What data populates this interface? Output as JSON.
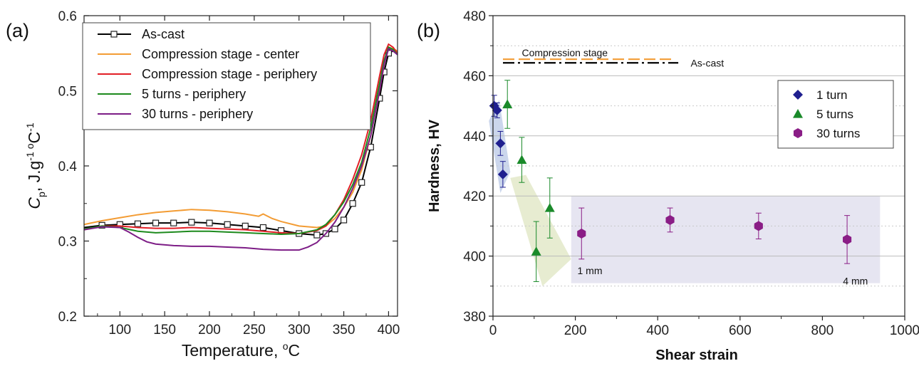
{
  "chart_data": [
    {
      "panel_label": "(a)",
      "type": "line",
      "xlabel": "Temperature, °C",
      "xlabel_parts": {
        "base": "Temperature, ",
        "sup": "o",
        "unit": "C"
      },
      "ylabel_parts": {
        "c": "C",
        "p": "p",
        "rest": ", J.g",
        "neg1": "-1",
        "o": "o",
        "c2": "C",
        "neg1b": "-1"
      },
      "xlim": [
        60,
        410
      ],
      "ylim": [
        0.2,
        0.6
      ],
      "xticks": [
        100,
        150,
        200,
        250,
        300,
        350,
        400
      ],
      "yticks": [
        0.2,
        0.3,
        0.4,
        0.5,
        0.6
      ],
      "xtick_labels": [
        "100",
        "150",
        "200",
        "250",
        "300",
        "350",
        "400"
      ],
      "ytick_labels": [
        "0.2",
        "0.3",
        "0.4",
        "0.5",
        "0.6"
      ],
      "legend_position": "top-left",
      "series": [
        {
          "name": "As-cast",
          "color": "#000000",
          "marker": "square",
          "x": [
            60,
            80,
            100,
            120,
            140,
            160,
            180,
            200,
            220,
            240,
            260,
            280,
            300,
            320,
            330,
            340,
            350,
            360,
            370,
            380,
            390,
            395,
            400,
            405,
            410
          ],
          "y": [
            0.318,
            0.321,
            0.322,
            0.323,
            0.324,
            0.324,
            0.325,
            0.324,
            0.322,
            0.32,
            0.318,
            0.314,
            0.31,
            0.308,
            0.31,
            0.316,
            0.328,
            0.35,
            0.378,
            0.425,
            0.49,
            0.525,
            0.55,
            0.553,
            0.552
          ]
        },
        {
          "name": "Compression stage - center",
          "color": "#f39c34",
          "x": [
            60,
            80,
            100,
            120,
            140,
            160,
            180,
            200,
            220,
            240,
            255,
            260,
            270,
            280,
            300,
            320,
            330,
            340,
            350,
            360,
            370,
            380,
            390,
            395,
            400,
            405,
            410
          ],
          "y": [
            0.322,
            0.327,
            0.331,
            0.335,
            0.338,
            0.34,
            0.342,
            0.341,
            0.339,
            0.336,
            0.333,
            0.336,
            0.33,
            0.326,
            0.32,
            0.318,
            0.32,
            0.33,
            0.345,
            0.365,
            0.395,
            0.44,
            0.5,
            0.535,
            0.558,
            0.556,
            0.553
          ]
        },
        {
          "name": "Compression stage - periphery",
          "color": "#e21f26",
          "x": [
            60,
            80,
            100,
            120,
            140,
            160,
            180,
            200,
            220,
            240,
            260,
            280,
            300,
            320,
            330,
            340,
            350,
            360,
            370,
            380,
            390,
            395,
            400,
            405,
            410
          ],
          "y": [
            0.315,
            0.32,
            0.32,
            0.318,
            0.317,
            0.317,
            0.318,
            0.317,
            0.316,
            0.315,
            0.313,
            0.311,
            0.31,
            0.314,
            0.32,
            0.335,
            0.355,
            0.382,
            0.415,
            0.46,
            0.52,
            0.548,
            0.562,
            0.558,
            0.55
          ]
        },
        {
          "name": "5 turns - periphery",
          "color": "#1d8a1d",
          "x": [
            60,
            80,
            100,
            120,
            140,
            160,
            180,
            200,
            220,
            240,
            260,
            280,
            300,
            320,
            330,
            340,
            350,
            360,
            370,
            380,
            390,
            395,
            400,
            405,
            410
          ],
          "y": [
            0.316,
            0.32,
            0.318,
            0.313,
            0.311,
            0.312,
            0.313,
            0.313,
            0.312,
            0.311,
            0.31,
            0.309,
            0.31,
            0.315,
            0.322,
            0.335,
            0.352,
            0.375,
            0.405,
            0.45,
            0.51,
            0.54,
            0.558,
            0.555,
            0.548
          ]
        },
        {
          "name": "30 turns - periphery",
          "color": "#7d1d86",
          "x": [
            60,
            80,
            100,
            110,
            120,
            130,
            140,
            160,
            180,
            200,
            220,
            240,
            260,
            280,
            300,
            310,
            320,
            330,
            340,
            350,
            360,
            370,
            380,
            390,
            395,
            400,
            405,
            410
          ],
          "y": [
            0.315,
            0.319,
            0.318,
            0.312,
            0.305,
            0.299,
            0.296,
            0.294,
            0.293,
            0.293,
            0.292,
            0.291,
            0.289,
            0.288,
            0.288,
            0.292,
            0.298,
            0.31,
            0.325,
            0.345,
            0.37,
            0.4,
            0.44,
            0.5,
            0.535,
            0.556,
            0.553,
            0.548
          ]
        }
      ]
    },
    {
      "panel_label": "(b)",
      "type": "scatter",
      "xlabel": "Shear strain",
      "ylabel": "Hardness, HV",
      "xlim": [
        0,
        1000
      ],
      "ylim": [
        380,
        480
      ],
      "xticks": [
        0,
        200,
        400,
        600,
        800,
        1000
      ],
      "yticks": [
        380,
        400,
        420,
        440,
        460,
        480
      ],
      "xtick_labels": [
        "0",
        "200",
        "400",
        "600",
        "800",
        "1000"
      ],
      "ytick_labels": [
        "380",
        "400",
        "420",
        "440",
        "460",
        "480"
      ],
      "minor_grid_y": [
        390,
        410,
        430,
        450,
        470
      ],
      "legend_position": "top-right",
      "reference_lines": [
        {
          "label": "Compression stage",
          "y": 465.5,
          "x_range": [
            0,
            440
          ],
          "color": "#f39c34",
          "style": "dashed"
        },
        {
          "label": "As-cast",
          "y": 464.3,
          "x_range": [
            0,
            450
          ],
          "color": "#000000",
          "style": "dash-dot"
        }
      ],
      "series": [
        {
          "name": "1 turn",
          "color": "#1f1f8f",
          "marker": "diamond",
          "x": [
            3,
            10,
            18,
            24
          ],
          "y": [
            450,
            448.5,
            437.5,
            427.2
          ],
          "err": [
            3.5,
            2.5,
            4,
            4.3
          ]
        },
        {
          "name": "5 turns",
          "color": "#1a8a2a",
          "marker": "triangle",
          "x": [
            35,
            70,
            105,
            138
          ],
          "y": [
            450.5,
            432,
            401.5,
            416
          ],
          "err": [
            8,
            7.5,
            10,
            10
          ]
        },
        {
          "name": "30 turns",
          "color": "#8a1d86",
          "marker": "hexagon",
          "x": [
            215,
            430,
            645,
            860
          ],
          "y": [
            407.5,
            412,
            410,
            405.5
          ],
          "err": [
            8.5,
            4,
            4.3,
            8
          ]
        }
      ],
      "annotations": [
        {
          "text": "1 mm",
          "x": 205,
          "y": 394
        },
        {
          "text": "4 mm",
          "x": 850,
          "y": 390.5
        }
      ],
      "shaded_regions": [
        {
          "color": "#b9c8e6",
          "polygon": [
            [
              -10,
              445
            ],
            [
              15,
              452
            ],
            [
              42,
              428
            ],
            [
              18,
              421
            ]
          ]
        },
        {
          "color": "#dfe6c2",
          "polygon": [
            [
              42,
              426
            ],
            [
              80,
              427
            ],
            [
              190,
              399
            ],
            [
              120,
              390
            ]
          ]
        },
        {
          "color": "#dedcec",
          "polygon": [
            [
              190,
              420
            ],
            [
              940,
              420
            ],
            [
              940,
              391
            ],
            [
              190,
              391
            ]
          ]
        }
      ]
    }
  ]
}
